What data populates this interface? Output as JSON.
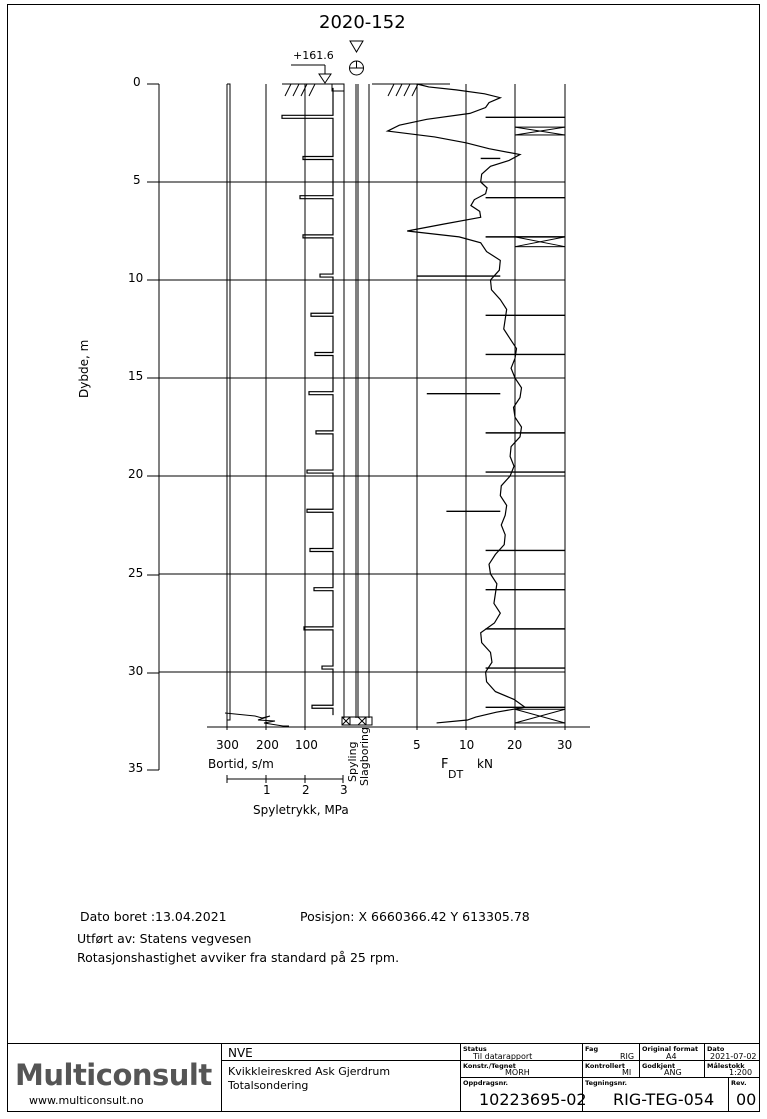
{
  "borehole": {
    "id": "2020-152",
    "elevation": "+161.6",
    "depth_axis_label": "Dybde, m",
    "depth_ticks": [
      "0",
      "5",
      "10",
      "15",
      "20",
      "25",
      "30",
      "35"
    ],
    "bortid_ticks": [
      "300",
      "200",
      "100"
    ],
    "bortid_label": "Bortid, s/m",
    "pressure_ticks": [
      "1",
      "2",
      "3"
    ],
    "pressure_label": "Spyletrykk, MPa",
    "spyling_label": "Spyling",
    "slagboring_label": "Slagboring",
    "force_ticks": [
      "5",
      "10",
      "20",
      "30"
    ],
    "force_symbol": "F",
    "force_subscript": "DT",
    "force_unit": "kN"
  },
  "chart_data": {
    "type": "line",
    "title": "2020-152",
    "depth_range_m": [
      0,
      35
    ],
    "final_depth_m": 32.6,
    "ylabel": "Dybde, m",
    "bortid_xlim": [
      300,
      0
    ],
    "bortid_xlabel": "Bortid, s/m",
    "pressure_xlabel": "Spyletrykk, MPa",
    "force_xlim": [
      0,
      30
    ],
    "force_xlabel": "F DT kN",
    "bortid_spikes_depth_m": [
      1.7,
      3.8,
      5.8,
      7.8,
      9.8,
      11.8,
      13.8,
      15.8,
      17.8,
      19.8,
      21.8,
      23.8,
      25.8,
      27.8,
      29.8,
      31.8
    ],
    "force_profile": [
      {
        "depth": 0.0,
        "force": 5
      },
      {
        "depth": 0.3,
        "force": 9
      },
      {
        "depth": 0.7,
        "force": 17
      },
      {
        "depth": 1.2,
        "force": 14
      },
      {
        "depth": 1.8,
        "force": 6
      },
      {
        "depth": 2.4,
        "force": 2
      },
      {
        "depth": 3.0,
        "force": 10
      },
      {
        "depth": 3.6,
        "force": 21
      },
      {
        "depth": 4.2,
        "force": 15
      },
      {
        "depth": 5.0,
        "force": 13
      },
      {
        "depth": 5.6,
        "force": 14
      },
      {
        "depth": 6.2,
        "force": 11
      },
      {
        "depth": 6.8,
        "force": 13
      },
      {
        "depth": 7.5,
        "force": 4
      },
      {
        "depth": 8.1,
        "force": 13
      },
      {
        "depth": 9.0,
        "force": 17
      },
      {
        "depth": 10.0,
        "force": 15
      },
      {
        "depth": 11.0,
        "force": 17
      },
      {
        "depth": 12.0,
        "force": 18
      },
      {
        "depth": 13.0,
        "force": 19
      },
      {
        "depth": 14.0,
        "force": 20
      },
      {
        "depth": 15.0,
        "force": 20
      },
      {
        "depth": 16.0,
        "force": 21
      },
      {
        "depth": 17.0,
        "force": 20
      },
      {
        "depth": 18.0,
        "force": 21
      },
      {
        "depth": 19.0,
        "force": 19
      },
      {
        "depth": 20.0,
        "force": 19
      },
      {
        "depth": 21.0,
        "force": 17
      },
      {
        "depth": 22.0,
        "force": 18
      },
      {
        "depth": 23.0,
        "force": 18
      },
      {
        "depth": 24.0,
        "force": 16
      },
      {
        "depth": 25.0,
        "force": 15
      },
      {
        "depth": 26.0,
        "force": 16
      },
      {
        "depth": 27.0,
        "force": 17
      },
      {
        "depth": 28.0,
        "force": 13
      },
      {
        "depth": 29.0,
        "force": 15
      },
      {
        "depth": 30.0,
        "force": 14
      },
      {
        "depth": 31.0,
        "force": 16
      },
      {
        "depth": 31.8,
        "force": 22
      },
      {
        "depth": 32.3,
        "force": 12
      },
      {
        "depth": 32.6,
        "force": 7
      }
    ]
  },
  "info": {
    "date_line": "Dato boret :13.04.2021",
    "position_line": "Posisjon: X 6660366.42 Y 613305.78",
    "performed_line": "Utført av: Statens vegvesen",
    "rotation_line": "Rotasjonshastighet avviker fra standard på 25 rpm."
  },
  "titleblock": {
    "logo": "Multiconsult",
    "website": "www.multiconsult.no",
    "client": "NVE",
    "project_line1": "Kvikkleireskred Ask Gjerdrum",
    "project_line2": "Totalsondering",
    "status_label": "Status",
    "status_value": "Til datarapport",
    "fag_label": "Fag",
    "fag_value": "RIG",
    "format_label": "Original format",
    "format_value": "A4",
    "date_label": "Dato",
    "date_value": "2021-07-02",
    "drawn_label": "Konstr./Tegnet",
    "drawn_value": "MORH",
    "checked_label": "Kontrollert",
    "checked_value": "MI",
    "approved_label": "Godkjent",
    "approved_value": "ANG",
    "scale_label": "Målestokk",
    "scale_value": "1:200",
    "assignment_label": "Oppdragsnr.",
    "assignment_value": "10223695-02",
    "drawing_label": "Tegningsnr.",
    "drawing_value": "RIG-TEG-054",
    "rev_label": "Rev.",
    "rev_value": "00"
  }
}
